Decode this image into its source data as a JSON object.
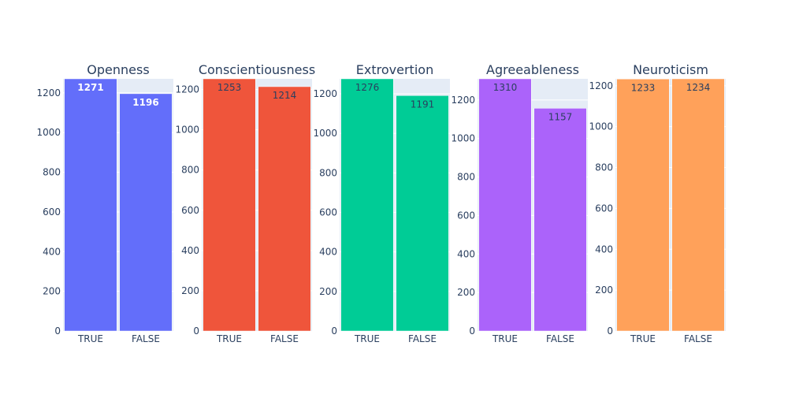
{
  "chart_data": [
    {
      "type": "bar",
      "title": "Openness",
      "categories": [
        "TRUE",
        "FALSE"
      ],
      "values": [
        1271,
        1196
      ],
      "ylim": [
        0,
        1271
      ],
      "ticks": [
        0,
        200,
        400,
        600,
        800,
        1000,
        1200
      ],
      "color": "#636efa",
      "label_color": "#ffffff",
      "label_bold": true
    },
    {
      "type": "bar",
      "title": "Conscientiousness",
      "categories": [
        "TRUE",
        "FALSE"
      ],
      "values": [
        1253,
        1214
      ],
      "ylim": [
        0,
        1253
      ],
      "ticks": [
        0,
        200,
        400,
        600,
        800,
        1000,
        1200
      ],
      "color": "#ef553b",
      "label_color": "#2a3f5f",
      "label_bold": false
    },
    {
      "type": "bar",
      "title": "Extrovertion",
      "categories": [
        "TRUE",
        "FALSE"
      ],
      "values": [
        1276,
        1191
      ],
      "ylim": [
        0,
        1276
      ],
      "ticks": [
        0,
        200,
        400,
        600,
        800,
        1000,
        1200
      ],
      "color": "#00cc96",
      "label_color": "#2a3f5f",
      "label_bold": false
    },
    {
      "type": "bar",
      "title": "Agreeableness",
      "categories": [
        "TRUE",
        "FALSE"
      ],
      "values": [
        1310,
        1157
      ],
      "ylim": [
        0,
        1310
      ],
      "ticks": [
        0,
        200,
        400,
        600,
        800,
        1000,
        1200
      ],
      "color": "#ab63fa",
      "label_color": "#2a3f5f",
      "label_bold": false
    },
    {
      "type": "bar",
      "title": "Neuroticism",
      "categories": [
        "TRUE",
        "FALSE"
      ],
      "values": [
        1233,
        1234
      ],
      "ylim": [
        0,
        1234
      ],
      "ticks": [
        0,
        200,
        400,
        600,
        800,
        1000,
        1200
      ],
      "color": "#ffa15a",
      "label_color": "#2a3f5f",
      "label_bold": false
    }
  ],
  "style": {
    "plot_bg": "#e5ecf6",
    "axis_text_color": "#2a3f5f",
    "title_color": "#2a3f5f",
    "bar_outline": "#ffffff"
  }
}
